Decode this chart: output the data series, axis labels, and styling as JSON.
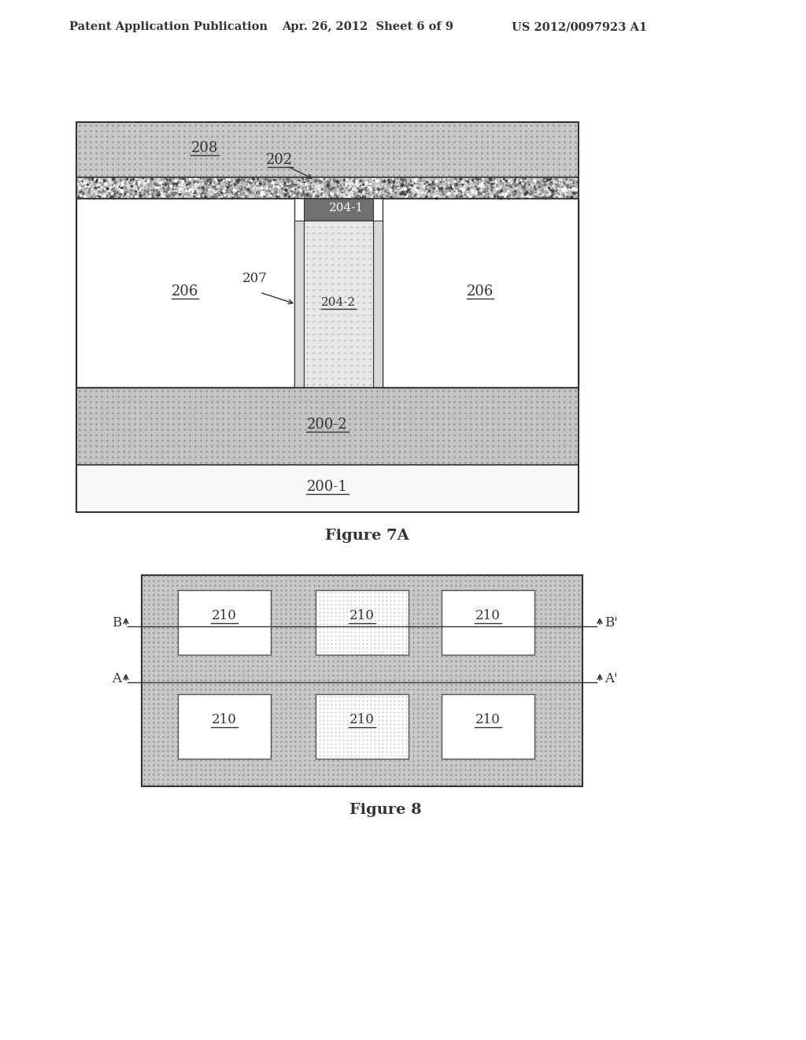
{
  "header_left": "Patent Application Publication",
  "header_mid": "Apr. 26, 2012  Sheet 6 of 9",
  "header_right": "US 2012/0097923 A1",
  "fig7a_title": "Figure 7A",
  "fig8_title": "Figure 8",
  "bg_color": "#ffffff",
  "text_color": "#333333",
  "col_208": "#c8c8c8",
  "col_202": "#b8b8b8",
  "col_206": "#ffffff",
  "col_204_1": "#707070",
  "col_204_2": "#e8e8e8",
  "col_200_2": "#c4c4c4",
  "col_200_1": "#f8f8f8",
  "col_hatch": "#999999",
  "col_border": "#333333"
}
